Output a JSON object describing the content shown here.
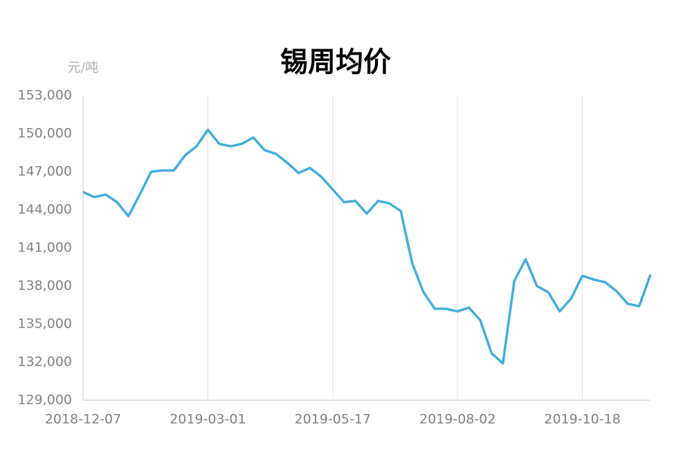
{
  "chart_data": {
    "type": "line",
    "title": "锡周均价",
    "y_label": "元/吨",
    "categories": [
      "2018-12-07",
      null,
      null,
      null,
      null,
      null,
      null,
      null,
      null,
      null,
      null,
      "2019-03-01",
      null,
      null,
      null,
      null,
      null,
      null,
      null,
      null,
      null,
      null,
      "2019-05-17",
      null,
      null,
      null,
      null,
      null,
      null,
      null,
      null,
      null,
      null,
      "2019-08-02",
      null,
      null,
      null,
      null,
      null,
      null,
      null,
      null,
      null,
      null,
      "2019-10-18",
      null,
      null,
      null,
      null,
      null,
      null
    ],
    "series": [
      {
        "name": "锡周均价",
        "color": "#41ade0",
        "values": [
          145400,
          145000,
          145200,
          144600,
          143500,
          145200,
          147000,
          147100,
          147100,
          148300,
          149000,
          150300,
          149200,
          149000,
          149200,
          149700,
          148700,
          148400,
          147700,
          146900,
          147300,
          146600,
          145600,
          144600,
          144700,
          143700,
          144700,
          144500,
          143900,
          139800,
          137500,
          136200,
          136200,
          136000,
          136300,
          135300,
          132700,
          131900,
          138400,
          140100,
          138000,
          137500,
          136000,
          137000,
          138800,
          138500,
          138300,
          137600,
          136600,
          136400,
          138900
        ]
      }
    ],
    "ylim": [
      129000,
      153000
    ],
    "yticks": [
      {
        "value": 129000,
        "label": "129,000"
      },
      {
        "value": 132000,
        "label": "132,000"
      },
      {
        "value": 135000,
        "label": "135,000"
      },
      {
        "value": 138000,
        "label": "138,000"
      },
      {
        "value": 141000,
        "label": "141,000"
      },
      {
        "value": 144000,
        "label": "144,000"
      },
      {
        "value": 147000,
        "label": "147,000"
      },
      {
        "value": 150000,
        "label": "150,000"
      },
      {
        "value": 153000,
        "label": "153,000"
      }
    ],
    "grid": "x"
  }
}
